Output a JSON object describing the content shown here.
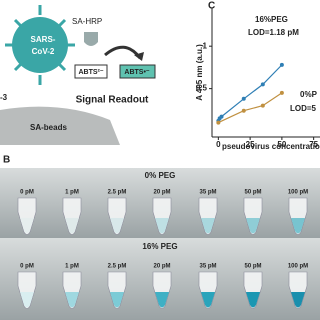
{
  "schematic": {
    "virus_label": [
      "SARS-",
      "CoV-2"
    ],
    "hrp_label": "SA-HRP",
    "substrate": "ABTS²⁻",
    "product": "ABTS•⁻",
    "readout": "Signal Readout",
    "left_label": "-3",
    "beads_label": "SA-beads"
  },
  "chart_data": {
    "type": "line",
    "panel_label": "C",
    "y_label": "A 405 nm (a.u.)",
    "x_label": "pseudovirus concentration",
    "series": [
      {
        "color": "#2f7fb5",
        "x": [
          0,
          1,
          2.5,
          20,
          35,
          50
        ],
        "values": [
          0.12,
          0.15,
          0.17,
          0.38,
          0.55,
          0.78
        ]
      },
      {
        "color": "#c09040",
        "x": [
          0,
          20,
          35,
          50
        ],
        "values": [
          0.1,
          0.24,
          0.3,
          0.45
        ]
      }
    ],
    "xlim": [
      -5,
      80
    ],
    "ylim": [
      -0.07,
      1.45
    ],
    "xticks": [
      0,
      25,
      50,
      75
    ],
    "yticks": [
      0.5,
      1
    ],
    "annotations": [
      {
        "text": "16%PEG",
        "color": "#2f7fb5"
      },
      {
        "text": "LOD=1.18 pM",
        "color": "#2f7fb5"
      },
      {
        "text": "0%P",
        "color": "#c09040"
      },
      {
        "text": "LOD=5",
        "color": "#c09040"
      }
    ]
  },
  "photos": {
    "panel_label": "B",
    "rows": [
      {
        "title": "0% PEG",
        "labels": [
          "0 pM",
          "1 pM",
          "2.5 pM",
          "20 pM",
          "35 pM",
          "50 pM",
          "100 pM"
        ]
      },
      {
        "title": "16% PEG",
        "labels": [
          "0 pM",
          "1 pM",
          "2.5 pM",
          "20 pM",
          "35 pM",
          "50 pM",
          "100 pM"
        ]
      }
    ]
  }
}
